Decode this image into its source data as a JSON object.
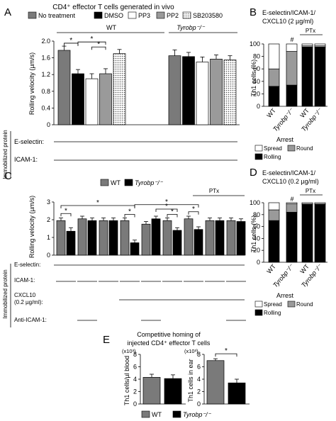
{
  "figure": {
    "title": "CD4⁺ effector T cells generated in vivo",
    "immobilized_label": "Immobilized protein",
    "panels": {
      "A": {
        "label": "A",
        "legend": [
          "No treatment",
          "DMSO",
          "PP3",
          "PP2",
          "SB203580"
        ],
        "group_wt": "WT",
        "group_ko": "Tyrobp⁻/⁻",
        "ylabel": "Rolling velocity (µm/s)",
        "row_eselectin": "E-selectin:",
        "row_icam": "ICAM-1:"
      },
      "B": {
        "label": "B",
        "title_line1": "E-selectin/ICAM-1/",
        "title_line2": "CXCL10 (2 µg/ml)",
        "ptx": "PTx",
        "hash": "#",
        "ylabel": "Th1 cells (%)",
        "xlabels": [
          "WT",
          "Tyrobp⁻/⁻",
          "WT",
          "Tyrobp⁻/⁻"
        ],
        "arrest": "Arrest",
        "legend": [
          "Spread",
          "Round",
          "Rolling"
        ]
      },
      "C": {
        "label": "C",
        "legend": [
          "WT",
          "Tyrobp⁻/⁻"
        ],
        "ptx": "PTx",
        "ylabel": "Rolling velocity (µm/s)",
        "row_eselectin": "E-selectin:",
        "row_icam": "ICAM-1:",
        "row_cxcl10_1": "CXCL10",
        "row_cxcl10_2": "(0.2 µg/ml):",
        "row_anti_icam": "Anti-ICAM-1:"
      },
      "D": {
        "label": "D",
        "title_line1": "E-selectin/ICAM-1/",
        "title_line2": "CXCL10 (0.2 µg/ml)",
        "ptx": "PTx",
        "hash": "#",
        "ylabel": "Th1 cells (%)",
        "xlabels": [
          "WT",
          "Tyrobp⁻/⁻",
          "WT",
          "Tyrobp⁻/⁻"
        ],
        "arrest": "Arrest",
        "legend": [
          "Spread",
          "Round",
          "Rolling"
        ]
      },
      "E": {
        "label": "E",
        "title_line1": "Competitive homing of",
        "title_line2": "injected CD4⁺ effector T cells",
        "mult": "(x10³)",
        "ylabel_left": "Th1 cells/µl blood",
        "ylabel_right": "Th1 cells in ear",
        "legend": [
          "WT",
          "Tyrobp⁻/⁻"
        ]
      }
    },
    "star": "*"
  },
  "chart_data": [
    {
      "panel": "A",
      "type": "bar",
      "ylim": [
        0,
        2.0
      ],
      "yticks": [
        "0",
        "0.4",
        "0.8",
        "1.2",
        "1.6",
        "2.0"
      ],
      "categories": [
        "WT",
        "Tyrobp-/-"
      ],
      "series": [
        {
          "name": "No treatment",
          "color": "#7a7a7a",
          "values": [
            1.78,
            1.65
          ],
          "err": [
            0.1,
            0.14
          ]
        },
        {
          "name": "DMSO",
          "color": "#000000",
          "values": [
            1.22,
            1.63
          ],
          "err": [
            0.1,
            0.1
          ]
        },
        {
          "name": "PP3",
          "color": "#ffffff",
          "values": [
            1.1,
            1.5
          ],
          "err": [
            0.12,
            0.12
          ]
        },
        {
          "name": "PP2",
          "color": "#9a9a9a",
          "values": [
            1.22,
            1.57
          ],
          "err": [
            0.12,
            0.1
          ]
        },
        {
          "name": "SB203580",
          "color": "pattern",
          "values": [
            1.7,
            1.55
          ],
          "err": [
            0.1,
            0.1
          ]
        }
      ],
      "sig_extra_bar": [
        1.62,
        1.65
      ],
      "significance": [
        "*",
        "*",
        "*",
        "*"
      ]
    },
    {
      "panel": "B",
      "type": "stacked-bar",
      "ylim": [
        0,
        100
      ],
      "yticks": [
        "0",
        "20",
        "40",
        "60",
        "80",
        "100"
      ],
      "categories": [
        "WT",
        "Tyrobp-/-",
        "WT",
        "Tyrobp-/-"
      ],
      "series": [
        {
          "name": "Rolling",
          "color": "#000000",
          "values": [
            32,
            34,
            95,
            95
          ]
        },
        {
          "name": "Round",
          "color": "#9a9a9a",
          "values": [
            28,
            54,
            2,
            2
          ]
        },
        {
          "name": "Spread",
          "color": "#ffffff",
          "values": [
            40,
            12,
            3,
            3
          ]
        }
      ]
    },
    {
      "panel": "C",
      "type": "bar",
      "ylim": [
        0,
        3
      ],
      "yticks": [
        "0",
        "1",
        "2",
        "3"
      ],
      "series": [
        {
          "name": "WT",
          "color": "#7a7a7a"
        },
        {
          "name": "Tyrobp-/-",
          "color": "#000000"
        }
      ],
      "bars": [
        {
          "group": 0,
          "genotype": "WT",
          "value": 1.95,
          "err": 0.15
        },
        {
          "group": 0,
          "genotype": "Tyrobp-/-",
          "value": 1.35,
          "err": 0.2
        },
        {
          "group": 1,
          "genotype": "WT",
          "value": 2.05,
          "err": 0.15
        },
        {
          "group": 1,
          "genotype": "Tyrobp-/-",
          "value": 1.95,
          "err": 0.15
        },
        {
          "group": 2,
          "genotype": "WT",
          "value": 1.95,
          "err": 0.15
        },
        {
          "group": 2,
          "genotype": "Tyrobp-/-",
          "value": 1.95,
          "err": 0.15
        },
        {
          "group": 3,
          "genotype": "WT",
          "value": 1.95,
          "err": 0.15
        },
        {
          "group": 3,
          "genotype": "Tyrobp-/-",
          "value": 0.7,
          "err": 0.15
        },
        {
          "group": 4,
          "genotype": "WT",
          "value": 1.75,
          "err": 0.15
        },
        {
          "group": 4,
          "genotype": "Tyrobp-/-",
          "value": 2.05,
          "err": 0.15
        },
        {
          "group": 5,
          "genotype": "WT",
          "value": 1.95,
          "err": 0.15
        },
        {
          "group": 5,
          "genotype": "Tyrobp-/-",
          "value": 1.4,
          "err": 0.15
        },
        {
          "group": 6,
          "genotype": "WT",
          "value": 2.05,
          "err": 0.15
        },
        {
          "group": 6,
          "genotype": "Tyrobp-/-",
          "value": 1.45,
          "err": 0.15
        },
        {
          "group": 7,
          "genotype": "WT",
          "value": 1.95,
          "err": 0.15
        },
        {
          "group": 7,
          "genotype": "Tyrobp-/-",
          "value": 1.95,
          "err": 0.15
        },
        {
          "group": 8,
          "genotype": "WT",
          "value": 1.95,
          "err": 0.15
        },
        {
          "group": 8,
          "genotype": "Tyrobp-/-",
          "value": 1.9,
          "err": 0.15
        }
      ]
    },
    {
      "panel": "D",
      "type": "stacked-bar",
      "ylim": [
        0,
        100
      ],
      "yticks": [
        "0",
        "20",
        "40",
        "60",
        "80",
        "100"
      ],
      "categories": [
        "WT",
        "Tyrobp-/-",
        "WT",
        "Tyrobp-/-"
      ],
      "series": [
        {
          "name": "Rolling",
          "color": "#000000",
          "values": [
            70,
            84,
            97,
            97
          ]
        },
        {
          "name": "Round",
          "color": "#9a9a9a",
          "values": [
            18,
            14,
            1,
            1
          ]
        },
        {
          "name": "Spread",
          "color": "#ffffff",
          "values": [
            12,
            2,
            2,
            2
          ]
        }
      ]
    },
    {
      "panel": "E-blood",
      "type": "bar",
      "ylim": [
        0,
        8
      ],
      "yticks": [
        "0",
        "2",
        "4",
        "6",
        "8"
      ],
      "categories": [
        "WT",
        "Tyrobp-/-"
      ],
      "values": [
        4.3,
        4.1
      ],
      "err": [
        0.5,
        0.6
      ],
      "colors": [
        "#7a7a7a",
        "#000000"
      ]
    },
    {
      "panel": "E-ear",
      "type": "bar",
      "ylim": [
        0,
        8
      ],
      "yticks": [
        "0",
        "2",
        "4",
        "6",
        "8"
      ],
      "categories": [
        "WT",
        "Tyrobp-/-"
      ],
      "values": [
        7.0,
        3.4
      ],
      "err": [
        0.3,
        0.6
      ],
      "colors": [
        "#7a7a7a",
        "#000000"
      ],
      "significance": [
        "*"
      ]
    }
  ]
}
